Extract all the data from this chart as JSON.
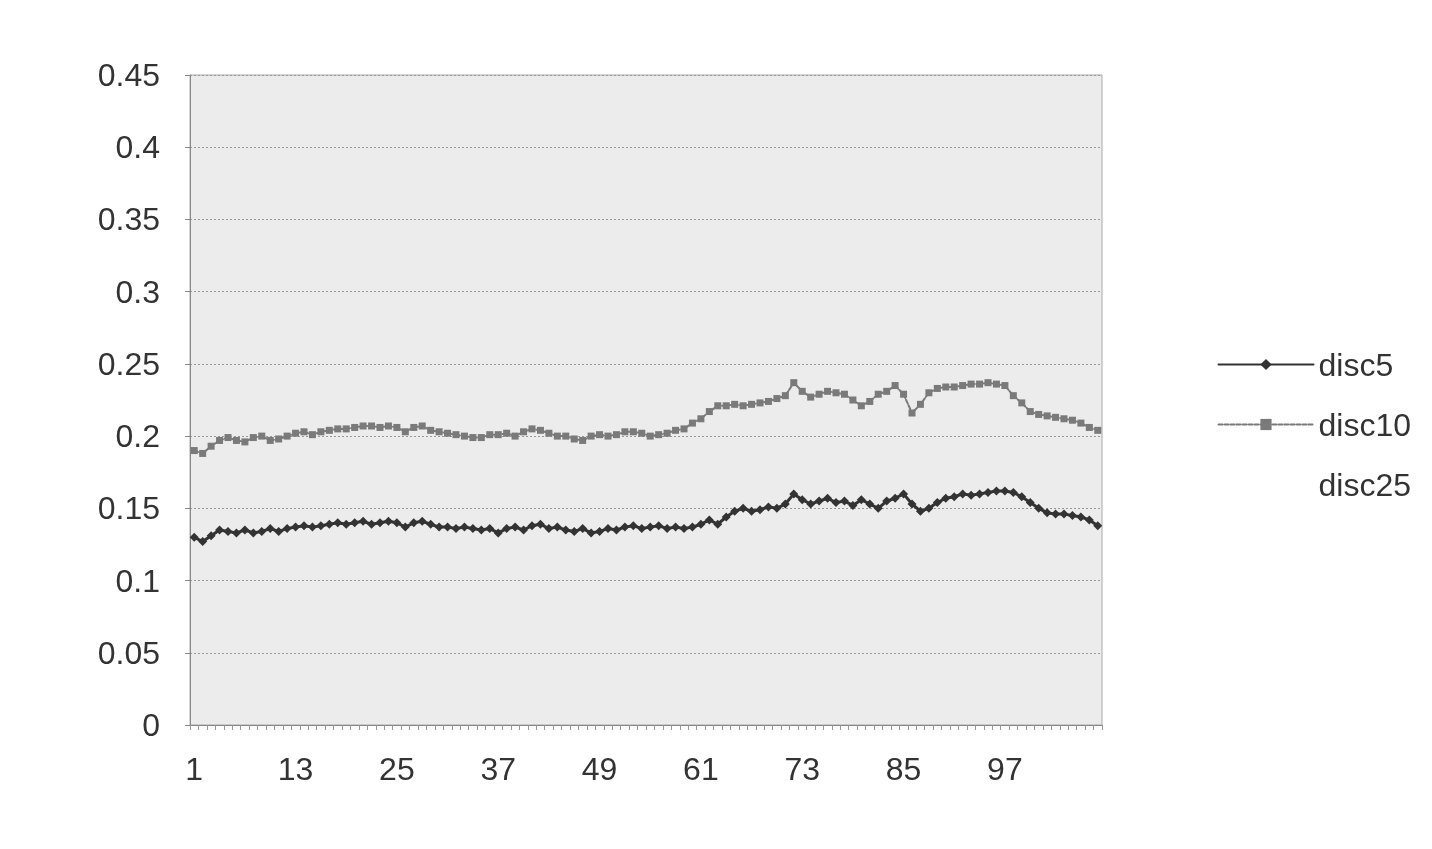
{
  "chart_data": {
    "type": "line",
    "categories": [
      "1",
      null,
      null,
      null,
      null,
      null,
      null,
      null,
      null,
      null,
      null,
      null,
      "13",
      null,
      null,
      null,
      null,
      null,
      null,
      null,
      null,
      null,
      null,
      null,
      "25",
      null,
      null,
      null,
      null,
      null,
      null,
      null,
      null,
      null,
      null,
      null,
      "37",
      null,
      null,
      null,
      null,
      null,
      null,
      null,
      null,
      null,
      null,
      null,
      "49",
      null,
      null,
      null,
      null,
      null,
      null,
      null,
      null,
      null,
      null,
      null,
      "61",
      null,
      null,
      null,
      null,
      null,
      null,
      null,
      null,
      null,
      null,
      null,
      "73",
      null,
      null,
      null,
      null,
      null,
      null,
      null,
      null,
      null,
      null,
      null,
      "85",
      null,
      null,
      null,
      null,
      null,
      null,
      null,
      null,
      null,
      null,
      null,
      "97",
      null,
      null,
      null,
      null,
      null,
      null,
      null,
      null,
      null,
      null,
      null
    ],
    "series": [
      {
        "name": "disc5",
        "color": "#333333",
        "marker": "diamond",
        "line_style": "solid",
        "values": [
          0.13,
          0.127,
          0.131,
          0.135,
          0.134,
          0.133,
          0.135,
          0.133,
          0.134,
          0.136,
          0.134,
          0.136,
          0.137,
          0.138,
          0.137,
          0.138,
          0.139,
          0.14,
          0.139,
          0.14,
          0.141,
          0.139,
          0.14,
          0.141,
          0.14,
          0.137,
          0.14,
          0.141,
          0.139,
          0.137,
          0.137,
          0.136,
          0.137,
          0.136,
          0.135,
          0.136,
          0.133,
          0.136,
          0.137,
          0.135,
          0.138,
          0.139,
          0.136,
          0.137,
          0.135,
          0.134,
          0.136,
          0.133,
          0.134,
          0.136,
          0.135,
          0.137,
          0.138,
          0.136,
          0.137,
          0.138,
          0.136,
          0.137,
          0.136,
          0.137,
          0.139,
          0.142,
          0.139,
          0.144,
          0.148,
          0.15,
          0.148,
          0.149,
          0.151,
          0.15,
          0.153,
          0.16,
          0.156,
          0.153,
          0.155,
          0.157,
          0.154,
          0.155,
          0.152,
          0.156,
          0.153,
          0.15,
          0.155,
          0.157,
          0.16,
          0.153,
          0.148,
          0.15,
          0.154,
          0.157,
          0.158,
          0.16,
          0.159,
          0.16,
          0.161,
          0.162,
          0.162,
          0.161,
          0.158,
          0.154,
          0.15,
          0.147,
          0.146,
          0.146,
          0.145,
          0.144,
          0.142,
          0.138
        ]
      },
      {
        "name": "disc10",
        "color": "#7a7a7a",
        "marker": "square",
        "line_style": "dashed",
        "values": [
          0.19,
          0.188,
          0.193,
          0.197,
          0.199,
          0.197,
          0.196,
          0.199,
          0.2,
          0.197,
          0.198,
          0.2,
          0.202,
          0.203,
          0.201,
          0.203,
          0.204,
          0.205,
          0.205,
          0.206,
          0.207,
          0.207,
          0.206,
          0.207,
          0.206,
          0.203,
          0.206,
          0.207,
          0.204,
          0.203,
          0.202,
          0.201,
          0.2,
          0.199,
          0.199,
          0.201,
          0.201,
          0.202,
          0.2,
          0.203,
          0.205,
          0.204,
          0.202,
          0.2,
          0.2,
          0.198,
          0.197,
          0.2,
          0.201,
          0.2,
          0.201,
          0.203,
          0.203,
          0.202,
          0.2,
          0.201,
          0.202,
          0.204,
          0.205,
          0.209,
          0.212,
          0.217,
          0.221,
          0.221,
          0.222,
          0.221,
          0.222,
          0.223,
          0.224,
          0.226,
          0.228,
          0.237,
          0.231,
          0.227,
          0.229,
          0.231,
          0.23,
          0.229,
          0.225,
          0.221,
          0.224,
          0.229,
          0.231,
          0.235,
          0.229,
          0.216,
          0.222,
          0.23,
          0.233,
          0.234,
          0.234,
          0.235,
          0.236,
          0.236,
          0.237,
          0.236,
          0.235,
          0.228,
          0.223,
          0.217,
          0.215,
          0.214,
          0.213,
          0.212,
          0.211,
          0.209,
          0.206,
          0.204
        ]
      },
      {
        "name": "disc25",
        "values": [
          null,
          null,
          null,
          null,
          null,
          null,
          null,
          null,
          null,
          null,
          null,
          null,
          null,
          null,
          null,
          null,
          null,
          null,
          null,
          null,
          null,
          null,
          null,
          null,
          null,
          null,
          null,
          null,
          null,
          null,
          null,
          null,
          null,
          null,
          null,
          null,
          null,
          null,
          null,
          null,
          null,
          null,
          null,
          null,
          null,
          null,
          null,
          null,
          null,
          null,
          null,
          null,
          null,
          null,
          null,
          null,
          null,
          null,
          null,
          null,
          null,
          null,
          null,
          null,
          null,
          null,
          null,
          null,
          null,
          null,
          null,
          null,
          null,
          null,
          null,
          null,
          null,
          null,
          null,
          null,
          null,
          null,
          null,
          null,
          null,
          null,
          null,
          null,
          null,
          null,
          null,
          null,
          null,
          null,
          null,
          null,
          null,
          null,
          null,
          null,
          null,
          null,
          null,
          null,
          null,
          null,
          null,
          null
        ]
      }
    ],
    "ylim": [
      0,
      0.45
    ],
    "yticks": [
      0,
      0.05,
      0.1,
      0.15,
      0.2,
      0.25,
      0.3,
      0.35,
      0.4,
      0.45
    ],
    "grid": "y",
    "legend": "right"
  }
}
